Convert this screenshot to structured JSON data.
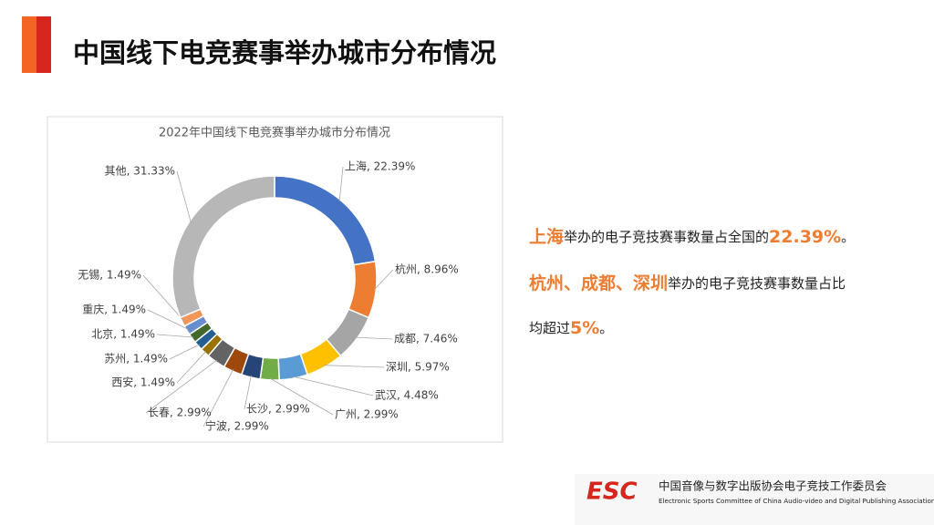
{
  "header": {
    "title": "中国线下电竞赛事举办城市分布情况"
  },
  "chart_data": {
    "type": "donut",
    "title": "2022年中国线下电竞赛事举办城市分布情况",
    "categories": [
      "上海",
      "杭州",
      "成都",
      "深圳",
      "武汉",
      "广州",
      "长沙",
      "宁波",
      "长春",
      "西安",
      "苏州",
      "北京",
      "重庆",
      "无锡",
      "其他"
    ],
    "values": [
      22.39,
      8.96,
      7.46,
      5.97,
      4.48,
      2.99,
      2.99,
      2.99,
      2.99,
      1.49,
      1.49,
      1.49,
      1.49,
      1.49,
      31.33
    ],
    "value_labels": [
      "上海, 22.39%",
      "杭州, 8.96%",
      "成都, 7.46%",
      "深圳, 5.97%",
      "武汉, 4.48%",
      "广州, 2.99%",
      "长沙, 2.99%",
      "宁波, 2.99%",
      "长春, 2.99%",
      "西安, 1.49%",
      "苏州, 1.49%",
      "北京, 1.49%",
      "重庆, 1.49%",
      "无锡, 1.49%",
      "其他, 31.33%"
    ],
    "colors": [
      "#4472c4",
      "#ed7d31",
      "#a5a5a5",
      "#ffc000",
      "#5b9bd5",
      "#70ad47",
      "#264478",
      "#9e480e",
      "#636363",
      "#997300",
      "#255e91",
      "#43682b",
      "#698ed0",
      "#f1975a",
      "#b7b7b7"
    ]
  },
  "notes": {
    "lines": [
      [
        {
          "text": "上海",
          "accent": true
        },
        {
          "text": "举办的电子竞技赛事数量占全国的",
          "accent": false
        },
        {
          "text": "22.39%",
          "accent": true
        },
        {
          "text": "。",
          "accent": false
        }
      ],
      [
        {
          "text": "杭州、成都、深圳",
          "accent": true
        },
        {
          "text": "举办的电子竞技赛事数量占比",
          "accent": false
        }
      ],
      [
        {
          "text": "均超过",
          "accent": false
        },
        {
          "text": "5%",
          "accent": true
        },
        {
          "text": "。",
          "accent": false
        }
      ]
    ]
  },
  "footer": {
    "logo": "ESC",
    "org_name": "中国音像与数字出版协会电子竞技工作委员会",
    "org_name_en": "Electronic Sports Committee of China Audio-video and Digital Publishing Association"
  }
}
